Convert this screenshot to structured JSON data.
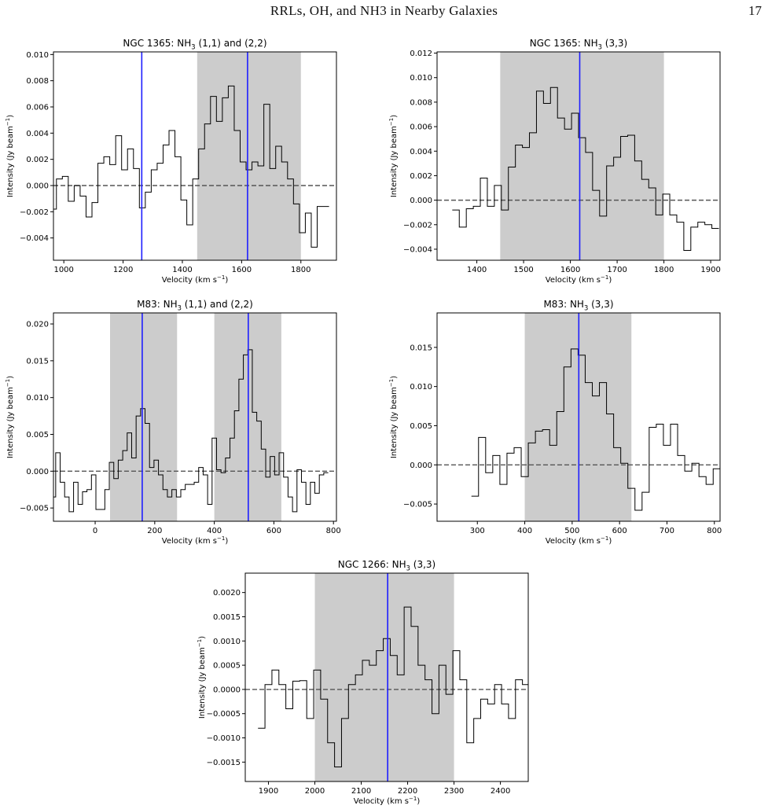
{
  "header": {
    "running_title": "RRLs, OH, and NH3 in Nearby Galaxies",
    "page_number": "17"
  },
  "chart_data": [
    {
      "type": "line",
      "title": "NGC 1365: NH3 (1,1) and (2,2)",
      "xlabel": "Velocity (km s−1)",
      "ylabel": "Intensity (Jy beam−1)",
      "xlim": [
        965,
        1920
      ],
      "ylim": [
        -0.0057,
        0.0102
      ],
      "xticks": [
        1000,
        1200,
        1400,
        1600,
        1800
      ],
      "xtick_labels": [
        "1000",
        "1200",
        "1400",
        "1600",
        "1800"
      ],
      "yticks": [
        -0.004,
        -0.002,
        0.0,
        0.002,
        0.004,
        0.006,
        0.008,
        0.01
      ],
      "ytick_labels": [
        "−0.004",
        "−0.002",
        "0.000",
        "0.002",
        "0.004",
        "0.006",
        "0.008",
        "0.010"
      ],
      "shaded_ranges": [
        [
          1450,
          1800
        ]
      ],
      "vlines": [
        1263,
        1620
      ],
      "zero_line": true,
      "series": [
        {
          "style": "steps",
          "x": [
            965,
            985,
            1005,
            1025,
            1045,
            1065,
            1085,
            1105,
            1125,
            1145,
            1165,
            1185,
            1205,
            1225,
            1245,
            1265,
            1285,
            1305,
            1325,
            1345,
            1365,
            1385,
            1405,
            1425,
            1445,
            1465,
            1485,
            1505,
            1525,
            1545,
            1565,
            1585,
            1605,
            1625,
            1645,
            1665,
            1685,
            1705,
            1725,
            1745,
            1765,
            1785,
            1805,
            1825,
            1845,
            1865,
            1885
          ],
          "values": [
            -0.0018,
            0.0005,
            0.0007,
            -0.0012,
            0.0,
            -0.0008,
            -0.0024,
            -0.0013,
            0.0017,
            0.0022,
            0.0016,
            0.0038,
            0.0012,
            0.0028,
            0.0013,
            -0.0017,
            -0.0005,
            0.0012,
            0.0017,
            0.0031,
            0.0042,
            0.0022,
            -0.0011,
            -0.003,
            0.0005,
            0.0028,
            0.0047,
            0.0068,
            0.0049,
            0.0067,
            0.0076,
            0.0042,
            0.0018,
            0.0012,
            0.0018,
            0.0015,
            0.0062,
            0.0013,
            0.003,
            0.0018,
            0.0005,
            -0.0014,
            -0.0036,
            -0.0021,
            -0.0047,
            -0.0016,
            -0.0016
          ]
        }
      ]
    },
    {
      "type": "line",
      "title": "NGC 1365: NH3 (3,3)",
      "xlabel": "Velocity (km s−1)",
      "ylabel": "Intensity (Jy beam−1)",
      "xlim": [
        1315,
        1920
      ],
      "ylim": [
        -0.0049,
        0.0121
      ],
      "xticks": [
        1400,
        1500,
        1600,
        1700,
        1800,
        1900
      ],
      "xtick_labels": [
        "1400",
        "1500",
        "1600",
        "1700",
        "1800",
        "1900"
      ],
      "yticks": [
        -0.004,
        -0.002,
        0.0,
        0.002,
        0.004,
        0.006,
        0.008,
        0.01,
        0.012
      ],
      "ytick_labels": [
        "−0.004",
        "−0.002",
        "0.000",
        "0.002",
        "0.004",
        "0.006",
        "0.008",
        "0.010",
        "0.012"
      ],
      "shaded_ranges": [
        [
          1450,
          1800
        ]
      ],
      "vlines": [
        1620
      ],
      "zero_line": true,
      "series": [
        {
          "style": "steps",
          "x": [
            1355,
            1370,
            1385,
            1400,
            1415,
            1430,
            1445,
            1460,
            1475,
            1490,
            1505,
            1520,
            1535,
            1550,
            1565,
            1580,
            1595,
            1610,
            1625,
            1640,
            1655,
            1670,
            1685,
            1700,
            1715,
            1730,
            1745,
            1760,
            1775,
            1790,
            1805,
            1820,
            1835,
            1850,
            1865,
            1880,
            1895,
            1910
          ],
          "values": [
            -0.0008,
            -0.0022,
            -0.0007,
            -0.0005,
            0.0018,
            -0.0005,
            0.0012,
            -0.0008,
            0.0027,
            0.0045,
            0.0043,
            0.0055,
            0.0089,
            0.0079,
            0.0092,
            0.0067,
            0.0058,
            0.0071,
            0.0051,
            0.0039,
            0.0008,
            -0.0013,
            0.0028,
            0.0035,
            0.0052,
            0.0053,
            0.0032,
            0.0017,
            0.001,
            -0.0012,
            0.0005,
            -0.0012,
            -0.0018,
            -0.0041,
            -0.0022,
            -0.0018,
            -0.002,
            -0.0023
          ]
        }
      ]
    },
    {
      "type": "line",
      "title": "M83: NH3 (1,1) and (2,2)",
      "xlabel": "Velocity (km s−1)",
      "ylabel": "Intensity (Jy beam−1)",
      "xlim": [
        -140,
        810
      ],
      "ylim": [
        -0.0068,
        0.0215
      ],
      "xticks": [
        0,
        200,
        400,
        600,
        800
      ],
      "xtick_labels": [
        "0",
        "200",
        "400",
        "600",
        "800"
      ],
      "yticks": [
        -0.005,
        0.0,
        0.005,
        0.01,
        0.015,
        0.02
      ],
      "ytick_labels": [
        "−0.005",
        "0.000",
        "0.005",
        "0.010",
        "0.015",
        "0.020"
      ],
      "shaded_ranges": [
        [
          50,
          275
        ],
        [
          400,
          625
        ]
      ],
      "vlines": [
        158,
        514
      ],
      "zero_line": true,
      "series": [
        {
          "style": "steps",
          "x": [
            -140,
            -125,
            -110,
            -95,
            -80,
            -65,
            -50,
            -35,
            -20,
            -5,
            10,
            25,
            40,
            55,
            70,
            85,
            100,
            115,
            130,
            145,
            160,
            175,
            190,
            205,
            220,
            235,
            250,
            265,
            280,
            295,
            310,
            325,
            340,
            355,
            370,
            385,
            400,
            415,
            430,
            445,
            460,
            475,
            490,
            505,
            520,
            535,
            550,
            565,
            580,
            595,
            610,
            625,
            640,
            655,
            670,
            685,
            700,
            715,
            730,
            745,
            760,
            775
          ],
          "values": [
            -0.0035,
            0.0025,
            -0.0015,
            -0.0035,
            -0.0055,
            -0.0015,
            -0.0045,
            -0.0028,
            -0.0025,
            -0.0005,
            -0.0052,
            -0.0052,
            -0.0025,
            0.0012,
            -0.001,
            0.0015,
            0.0028,
            0.0052,
            0.0018,
            0.0075,
            0.0085,
            0.0065,
            0.0005,
            0.0015,
            -0.0005,
            -0.0025,
            -0.0035,
            -0.0025,
            -0.0035,
            -0.0025,
            -0.0018,
            -0.0018,
            -0.0015,
            0.0005,
            -0.0005,
            -0.0045,
            0.0045,
            0.0002,
            -0.0002,
            0.0018,
            0.0045,
            0.0082,
            0.0125,
            0.0158,
            0.0165,
            0.008,
            0.0068,
            0.003,
            -0.0008,
            0.002,
            -0.0005,
            0.0025,
            -0.0008,
            -0.0035,
            -0.0055,
            0.0002,
            -0.0015,
            -0.0045,
            -0.0015,
            -0.003,
            -0.0005,
            -0.0002
          ]
        }
      ]
    },
    {
      "type": "line",
      "title": "M83: NH3 (3,3)",
      "xlabel": "Velocity (km s−1)",
      "ylabel": "Intensity (Jy beam−1)",
      "xlim": [
        215,
        812
      ],
      "ylim": [
        -0.0072,
        0.0194
      ],
      "xticks": [
        300,
        400,
        500,
        600,
        700,
        800
      ],
      "xtick_labels": [
        "300",
        "400",
        "500",
        "600",
        "700",
        "800"
      ],
      "yticks": [
        -0.005,
        0.0,
        0.005,
        0.01,
        0.015
      ],
      "ytick_labels": [
        "−0.005",
        "0.000",
        "0.005",
        "0.010",
        "0.015"
      ],
      "shaded_ranges": [
        [
          400,
          625
        ]
      ],
      "vlines": [
        514
      ],
      "zero_line": true,
      "series": [
        {
          "style": "steps",
          "x": [
            295,
            310,
            325,
            340,
            355,
            370,
            385,
            400,
            415,
            430,
            445,
            460,
            475,
            490,
            505,
            520,
            535,
            550,
            565,
            580,
            595,
            610,
            625,
            640,
            655,
            670,
            685,
            700,
            715,
            730,
            745,
            760,
            775,
            790,
            805
          ],
          "values": [
            -0.004,
            0.0035,
            -0.001,
            0.0012,
            -0.0025,
            0.0015,
            0.0022,
            -0.0015,
            0.0028,
            0.0043,
            0.0045,
            0.0025,
            0.0068,
            0.0125,
            0.0148,
            0.014,
            0.0105,
            0.0088,
            0.0105,
            0.0065,
            0.0022,
            0.0002,
            -0.003,
            -0.0058,
            -0.0035,
            0.0048,
            0.0052,
            0.0025,
            0.0052,
            0.0012,
            -0.0008,
            0.0002,
            -0.0015,
            -0.0025,
            -0.0005
          ]
        }
      ]
    },
    {
      "type": "line",
      "title": "NGC 1266: NH3 (3,3)",
      "xlabel": "Velocity (km s−1)",
      "ylabel": "Intensity (Jy beam−1)",
      "xlim": [
        1850,
        2460
      ],
      "ylim": [
        -0.0019,
        0.0024
      ],
      "xticks": [
        1900,
        2000,
        2100,
        2200,
        2300,
        2400
      ],
      "xtick_labels": [
        "1900",
        "2000",
        "2100",
        "2200",
        "2300",
        "2400"
      ],
      "yticks": [
        -0.0015,
        -0.001,
        -0.0005,
        0.0,
        0.0005,
        0.001,
        0.0015,
        0.002
      ],
      "ytick_labels": [
        "−0.0015",
        "−0.0010",
        "−0.0005",
        "0.0000",
        "0.0005",
        "0.0010",
        "0.0015",
        "0.0020"
      ],
      "shaded_ranges": [
        [
          2000,
          2300
        ]
      ],
      "vlines": [
        2157
      ],
      "zero_line": true,
      "series": [
        {
          "style": "steps",
          "x": [
            1885,
            1900,
            1915,
            1930,
            1945,
            1960,
            1975,
            1990,
            2005,
            2020,
            2035,
            2050,
            2065,
            2080,
            2095,
            2110,
            2125,
            2140,
            2155,
            2170,
            2185,
            2200,
            2215,
            2230,
            2245,
            2260,
            2275,
            2290,
            2305,
            2320,
            2335,
            2350,
            2365,
            2380,
            2395,
            2410,
            2425,
            2440,
            2455
          ],
          "values": [
            -0.0008,
            0.0001,
            0.0004,
            0.0001,
            -0.0004,
            0.00017,
            0.00018,
            -0.0006,
            0.0004,
            -0.0002,
            -0.0011,
            -0.0016,
            -0.0006,
            0.0001,
            0.0003,
            0.0006,
            0.0005,
            0.0008,
            0.00105,
            0.0007,
            0.0003,
            0.0017,
            0.0013,
            0.0005,
            0.0002,
            -0.0005,
            0.0005,
            -0.0001,
            0.0008,
            0.0002,
            -0.0011,
            -0.0006,
            -0.0002,
            -0.0003,
            0.0001,
            -0.0003,
            -0.0006,
            0.0002,
            0.0001
          ]
        }
      ]
    }
  ]
}
